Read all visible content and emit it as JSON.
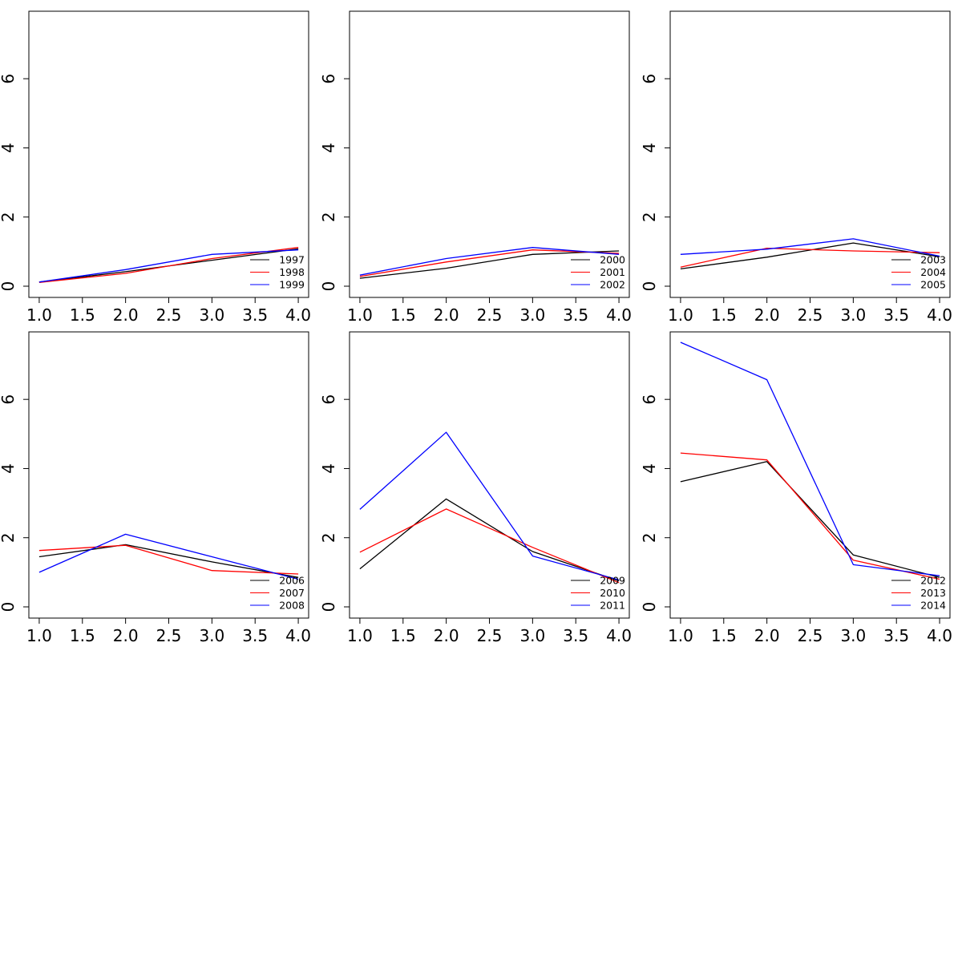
{
  "chart_data": [
    {
      "type": "line",
      "x": [
        1,
        2,
        3,
        4
      ],
      "xlim": [
        1,
        4
      ],
      "ylim": [
        0,
        7.8
      ],
      "xticks": [
        "1.0",
        "1.5",
        "2.0",
        "2.5",
        "3.0",
        "3.5",
        "4.0"
      ],
      "yticks": [
        "0",
        "2",
        "4",
        "6"
      ],
      "legend_position": "bottom-right",
      "series": [
        {
          "name": "1997",
          "color": "#000000",
          "values": [
            0.12,
            0.42,
            0.75,
            1.08
          ]
        },
        {
          "name": "1998",
          "color": "#ff0000",
          "values": [
            0.11,
            0.37,
            0.8,
            1.12
          ]
        },
        {
          "name": "1999",
          "color": "#0000ff",
          "values": [
            0.12,
            0.48,
            0.92,
            1.05
          ]
        }
      ]
    },
    {
      "type": "line",
      "x": [
        1,
        2,
        3,
        4
      ],
      "xlim": [
        1,
        4
      ],
      "ylim": [
        0,
        7.8
      ],
      "xticks": [
        "1.0",
        "1.5",
        "2.0",
        "2.5",
        "3.0",
        "3.5",
        "4.0"
      ],
      "yticks": [
        "0",
        "2",
        "4",
        "6"
      ],
      "legend_position": "bottom-right",
      "series": [
        {
          "name": "2000",
          "color": "#000000",
          "values": [
            0.23,
            0.52,
            0.92,
            1.02
          ]
        },
        {
          "name": "2001",
          "color": "#ff0000",
          "values": [
            0.28,
            0.7,
            1.05,
            0.95
          ]
        },
        {
          "name": "2002",
          "color": "#0000ff",
          "values": [
            0.32,
            0.8,
            1.12,
            0.92
          ]
        }
      ]
    },
    {
      "type": "line",
      "x": [
        1,
        2,
        3,
        4
      ],
      "xlim": [
        1,
        4
      ],
      "ylim": [
        0,
        7.8
      ],
      "xticks": [
        "1.0",
        "1.5",
        "2.0",
        "2.5",
        "3.0",
        "3.5",
        "4.0"
      ],
      "yticks": [
        "0",
        "2",
        "4",
        "6"
      ],
      "legend_position": "bottom-right",
      "series": [
        {
          "name": "2003",
          "color": "#000000",
          "values": [
            0.5,
            0.84,
            1.25,
            0.85
          ]
        },
        {
          "name": "2004",
          "color": "#ff0000",
          "values": [
            0.55,
            1.1,
            1.02,
            0.97
          ]
        },
        {
          "name": "2005",
          "color": "#0000ff",
          "values": [
            0.92,
            1.07,
            1.37,
            0.87
          ]
        }
      ]
    },
    {
      "type": "line",
      "x": [
        1,
        2,
        3,
        4
      ],
      "xlim": [
        1,
        4
      ],
      "ylim": [
        0,
        7.8
      ],
      "xticks": [
        "1.0",
        "1.5",
        "2.0",
        "2.5",
        "3.0",
        "3.5",
        "4.0"
      ],
      "yticks": [
        "0",
        "2",
        "4",
        "6"
      ],
      "legend_position": "bottom-right",
      "series": [
        {
          "name": "2006",
          "color": "#000000",
          "values": [
            1.45,
            1.8,
            1.3,
            0.85
          ]
        },
        {
          "name": "2007",
          "color": "#ff0000",
          "values": [
            1.63,
            1.78,
            1.05,
            0.95
          ]
        },
        {
          "name": "2008",
          "color": "#0000ff",
          "values": [
            1.0,
            2.1,
            1.45,
            0.8
          ]
        }
      ]
    },
    {
      "type": "line",
      "x": [
        1,
        2,
        3,
        4
      ],
      "xlim": [
        1,
        4
      ],
      "ylim": [
        0,
        7.8
      ],
      "xticks": [
        "1.0",
        "1.5",
        "2.0",
        "2.5",
        "3.0",
        "3.5",
        "4.0"
      ],
      "yticks": [
        "0",
        "2",
        "4",
        "6"
      ],
      "legend_position": "bottom-right",
      "series": [
        {
          "name": "2009",
          "color": "#000000",
          "values": [
            1.1,
            3.12,
            1.6,
            0.75
          ]
        },
        {
          "name": "2010",
          "color": "#ff0000",
          "values": [
            1.58,
            2.83,
            1.72,
            0.7
          ]
        },
        {
          "name": "2011",
          "color": "#0000ff",
          "values": [
            2.82,
            5.05,
            1.47,
            0.78
          ]
        }
      ]
    },
    {
      "type": "line",
      "x": [
        1,
        2,
        3,
        4
      ],
      "xlim": [
        1,
        4
      ],
      "ylim": [
        0,
        7.8
      ],
      "xticks": [
        "1.0",
        "1.5",
        "2.0",
        "2.5",
        "3.0",
        "3.5",
        "4.0"
      ],
      "yticks": [
        "0",
        "2",
        "4",
        "6"
      ],
      "legend_position": "bottom-right",
      "series": [
        {
          "name": "2012",
          "color": "#000000",
          "values": [
            3.62,
            4.2,
            1.5,
            0.85
          ]
        },
        {
          "name": "2013",
          "color": "#ff0000",
          "values": [
            4.45,
            4.25,
            1.35,
            0.8
          ]
        },
        {
          "name": "2014",
          "color": "#0000ff",
          "values": [
            7.65,
            6.57,
            1.22,
            0.9
          ]
        }
      ]
    }
  ]
}
